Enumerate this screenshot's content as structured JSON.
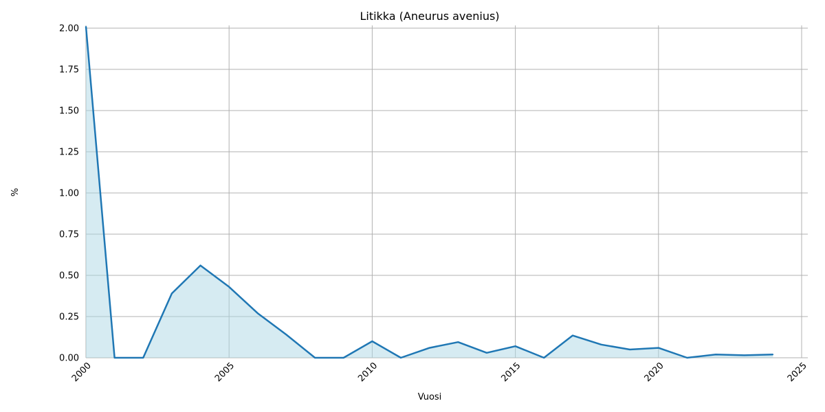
{
  "chart_data": {
    "type": "area",
    "title": "Litikka (Aneurus avenius)",
    "xlabel": "Vuosi",
    "ylabel": "%",
    "xlim": [
      2000,
      2025
    ],
    "ylim": [
      0,
      2.0
    ],
    "x_ticks": [
      "2000",
      "2005",
      "2010",
      "2015",
      "2020",
      "2025"
    ],
    "y_ticks": [
      "0.00",
      "0.25",
      "0.50",
      "0.75",
      "1.00",
      "1.25",
      "1.50",
      "1.75",
      "2.00"
    ],
    "grid": true,
    "line_color": "#1f77b4",
    "fill_color": "#add8e6",
    "series": [
      {
        "x": [
          2000,
          2001,
          2002,
          2003,
          2004,
          2005,
          2006,
          2007,
          2008,
          2009,
          2010,
          2011,
          2012,
          2013,
          2014,
          2015,
          2016,
          2017,
          2018,
          2019,
          2020,
          2021,
          2022,
          2023,
          2024
        ],
        "values": [
          2.01,
          0.0,
          0.0,
          0.39,
          0.56,
          0.43,
          0.27,
          0.14,
          0.0,
          0.0,
          0.1,
          0.0,
          0.06,
          0.095,
          0.03,
          0.07,
          0.0,
          0.135,
          0.08,
          0.05,
          0.06,
          0.0,
          0.02,
          0.015,
          0.02
        ]
      }
    ]
  }
}
